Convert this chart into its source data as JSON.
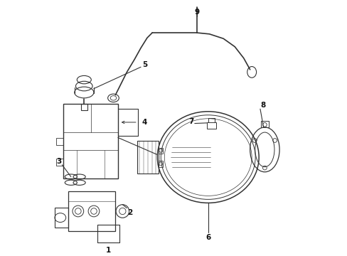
{
  "bg_color": "#ffffff",
  "line_color": "#333333",
  "text_color": "#111111",
  "figsize": [
    4.89,
    3.6
  ],
  "dpi": 100
}
